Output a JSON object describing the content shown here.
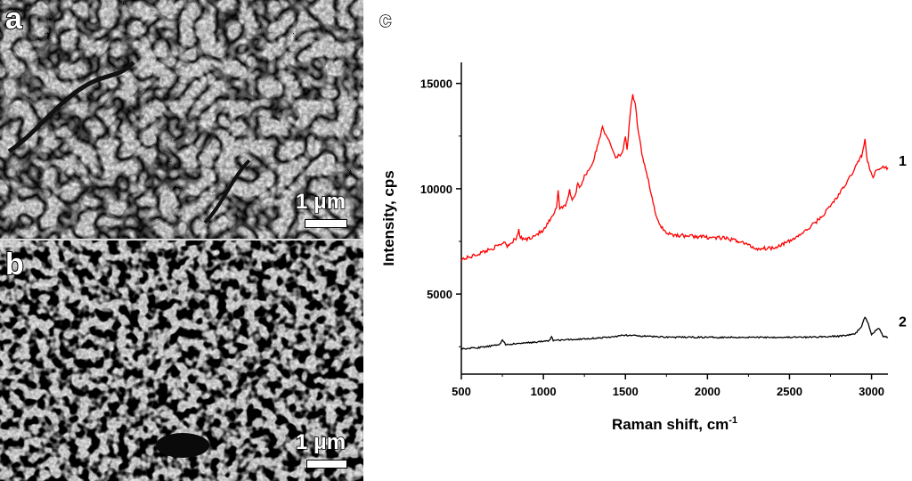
{
  "panels": {
    "a": {
      "letter": "a",
      "scale_label": "1 μm"
    },
    "b": {
      "letter": "b",
      "scale_label": "1 μm"
    },
    "c": {
      "letter": "c"
    }
  },
  "chart_data": {
    "type": "line",
    "xlabel": "Raman shift, cm",
    "xlabel_sup": "-1",
    "ylabel": "Intensity, cps",
    "xlim": [
      500,
      3100
    ],
    "ylim": [
      1200,
      16000
    ],
    "x_ticks": [
      500,
      1000,
      1500,
      2000,
      2500,
      3000
    ],
    "y_ticks": [
      5000,
      10000,
      15000
    ],
    "grid": false,
    "series": [
      {
        "name": "1",
        "color": "#ff0000",
        "points": [
          [
            500,
            6650
          ],
          [
            550,
            6750
          ],
          [
            600,
            6900
          ],
          [
            650,
            7050
          ],
          [
            700,
            7200
          ],
          [
            740,
            7350
          ],
          [
            760,
            7500
          ],
          [
            780,
            7300
          ],
          [
            820,
            7550
          ],
          [
            840,
            7700
          ],
          [
            850,
            8050
          ],
          [
            860,
            7650
          ],
          [
            900,
            7600
          ],
          [
            950,
            7800
          ],
          [
            1000,
            8000
          ],
          [
            1040,
            8500
          ],
          [
            1060,
            8700
          ],
          [
            1080,
            9100
          ],
          [
            1090,
            9950
          ],
          [
            1100,
            9050
          ],
          [
            1140,
            9300
          ],
          [
            1160,
            9900
          ],
          [
            1175,
            9500
          ],
          [
            1200,
            9800
          ],
          [
            1210,
            10350
          ],
          [
            1220,
            10000
          ],
          [
            1250,
            10600
          ],
          [
            1300,
            11200
          ],
          [
            1340,
            12300
          ],
          [
            1360,
            13000
          ],
          [
            1380,
            12500
          ],
          [
            1400,
            12300
          ],
          [
            1440,
            11500
          ],
          [
            1480,
            11700
          ],
          [
            1500,
            12400
          ],
          [
            1510,
            11800
          ],
          [
            1530,
            13700
          ],
          [
            1545,
            14400
          ],
          [
            1560,
            14000
          ],
          [
            1580,
            12600
          ],
          [
            1600,
            11700
          ],
          [
            1640,
            10400
          ],
          [
            1680,
            8900
          ],
          [
            1700,
            8400
          ],
          [
            1750,
            7900
          ],
          [
            1800,
            7800
          ],
          [
            1900,
            7750
          ],
          [
            2000,
            7700
          ],
          [
            2100,
            7650
          ],
          [
            2200,
            7500
          ],
          [
            2300,
            7150
          ],
          [
            2400,
            7200
          ],
          [
            2500,
            7500
          ],
          [
            2600,
            8000
          ],
          [
            2700,
            8700
          ],
          [
            2800,
            9700
          ],
          [
            2850,
            10300
          ],
          [
            2900,
            11000
          ],
          [
            2940,
            11600
          ],
          [
            2960,
            12300
          ],
          [
            2975,
            11300
          ],
          [
            2990,
            10900
          ],
          [
            3010,
            10600
          ],
          [
            3040,
            11000
          ],
          [
            3100,
            11000
          ]
        ]
      },
      {
        "name": "2",
        "color": "#000000",
        "points": [
          [
            500,
            2400
          ],
          [
            600,
            2450
          ],
          [
            700,
            2550
          ],
          [
            740,
            2650
          ],
          [
            750,
            2850
          ],
          [
            770,
            2600
          ],
          [
            850,
            2650
          ],
          [
            1000,
            2750
          ],
          [
            1040,
            2800
          ],
          [
            1050,
            3000
          ],
          [
            1060,
            2800
          ],
          [
            1200,
            2850
          ],
          [
            1400,
            2950
          ],
          [
            1500,
            3050
          ],
          [
            1600,
            3000
          ],
          [
            1800,
            2950
          ],
          [
            2000,
            2950
          ],
          [
            2200,
            2950
          ],
          [
            2400,
            2950
          ],
          [
            2600,
            2950
          ],
          [
            2800,
            3000
          ],
          [
            2900,
            3100
          ],
          [
            2940,
            3500
          ],
          [
            2960,
            3900
          ],
          [
            2980,
            3600
          ],
          [
            3000,
            3100
          ],
          [
            3030,
            3300
          ],
          [
            3050,
            3350
          ],
          [
            3070,
            3000
          ],
          [
            3100,
            2950
          ]
        ]
      }
    ]
  }
}
